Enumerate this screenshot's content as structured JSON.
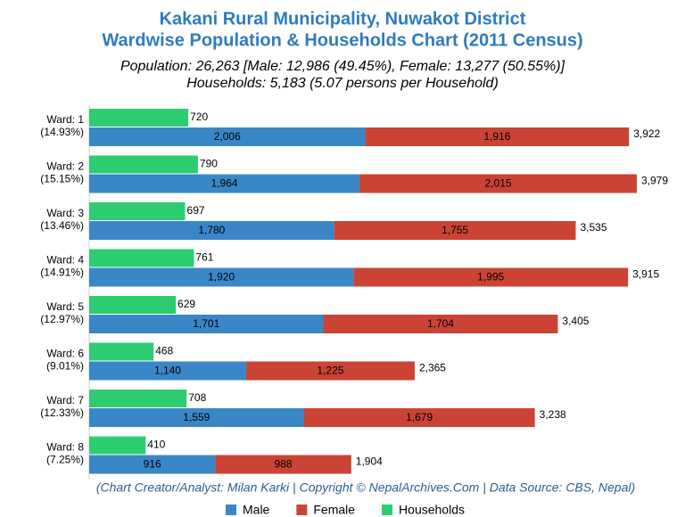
{
  "chart_data": {
    "type": "bar",
    "orientation": "horizontal",
    "title": [
      "Kakani Rural Municipality, Nuwakot District",
      "Wardwise Population & Households Chart (2011 Census)"
    ],
    "subtitle": [
      "Population: 26,263 [Male: 12,986 (49.45%), Female: 13,277 (50.55%)]",
      "Households: 5,183 (5.07 persons per Household)"
    ],
    "categories": [
      "Ward: 1",
      "Ward: 2",
      "Ward: 3",
      "Ward: 4",
      "Ward: 5",
      "Ward: 6",
      "Ward: 7",
      "Ward: 8"
    ],
    "category_notes": [
      "(14.93%)",
      "(15.15%)",
      "(13.46%)",
      "(14.91%)",
      "(12.97%)",
      "(9.01%)",
      "(12.33%)",
      "(7.25%)"
    ],
    "series": [
      {
        "name": "Male",
        "color": "#3a87c8",
        "stacked": true,
        "values": [
          2006,
          1964,
          1780,
          1920,
          1701,
          1140,
          1559,
          916
        ],
        "value_labels": [
          "2,006",
          "1,964",
          "1,780",
          "1,920",
          "1,701",
          "1,140",
          "1,559",
          "916"
        ]
      },
      {
        "name": "Female",
        "color": "#cb4335",
        "stacked": true,
        "values": [
          1916,
          2015,
          1755,
          1995,
          1704,
          1225,
          1679,
          988
        ],
        "value_labels": [
          "1,916",
          "2,015",
          "1,755",
          "1,995",
          "1,704",
          "1,225",
          "1,679",
          "988"
        ]
      },
      {
        "name": "Households",
        "color": "#2ecc71",
        "stacked": false,
        "values": [
          720,
          790,
          697,
          761,
          629,
          468,
          708,
          410
        ]
      }
    ],
    "totals": [
      3922,
      3979,
      3535,
      3915,
      3405,
      2365,
      3238,
      1904
    ],
    "total_labels": [
      "3,922",
      "3,979",
      "3,535",
      "3,915",
      "3,405",
      "2,365",
      "3,238",
      "1,904"
    ],
    "footer": "(Chart Creator/Analyst: Milan Karki | Copyright © NepalArchives.Com | Data Source: CBS, Nepal)"
  }
}
